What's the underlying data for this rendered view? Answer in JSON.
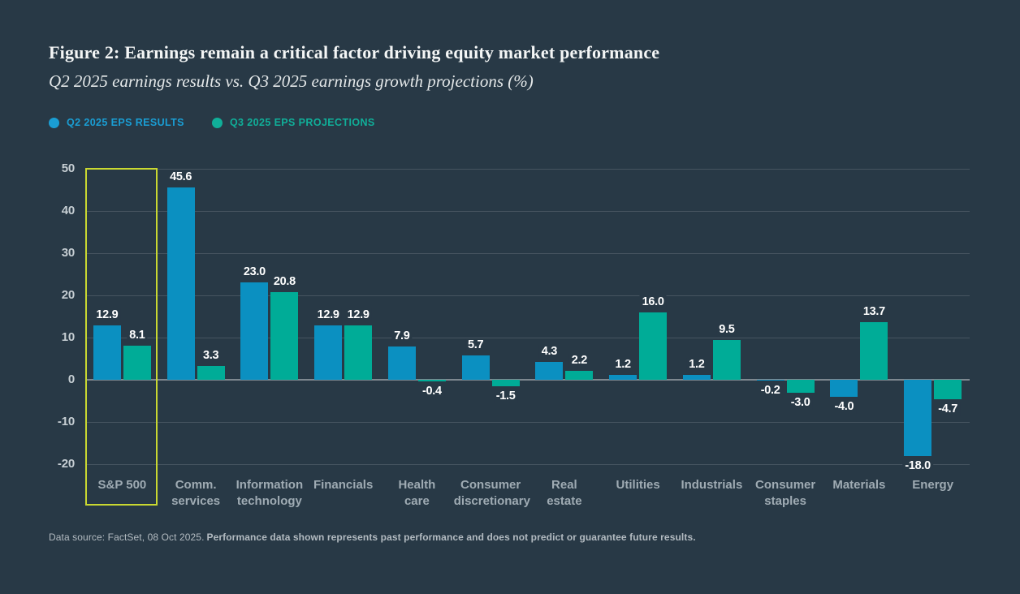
{
  "page": {
    "background": "#283946"
  },
  "header": {
    "title": "Figure 2: Earnings remain a critical factor driving equity market performance",
    "subtitle": "Q2 2025 earnings results vs. Q3 2025 earnings growth projections (%)"
  },
  "legend": [
    {
      "label": "Q2 2025 EPS RESULTS",
      "color": "#1a9ed4"
    },
    {
      "label": "Q3 2025 EPS PROJECTIONS",
      "color": "#10af99"
    }
  ],
  "chart_data": {
    "type": "bar",
    "title": "Q2 2025 earnings results vs. Q3 2025 earnings growth projections (%)",
    "categories": [
      "S&P 500",
      "Comm. services",
      "Information technology",
      "Financials",
      "Health care",
      "Consumer discretionary",
      "Real estate",
      "Utilities",
      "Industrials",
      "Consumer staples",
      "Materials",
      "Energy"
    ],
    "category_labels": [
      [
        "S&P 500"
      ],
      [
        "Comm.",
        "services"
      ],
      [
        "Information",
        "technology"
      ],
      [
        "Financials"
      ],
      [
        "Health",
        "care"
      ],
      [
        "Consumer",
        "discretionary"
      ],
      [
        "Real",
        "estate"
      ],
      [
        "Utilities"
      ],
      [
        "Industrials"
      ],
      [
        "Consumer",
        "staples"
      ],
      [
        "Materials"
      ],
      [
        "Energy"
      ]
    ],
    "series": [
      {
        "name": "Q2 2025 EPS RESULTS",
        "color": "#0b90c1",
        "values": [
          12.9,
          45.6,
          23.0,
          12.9,
          7.9,
          5.7,
          4.3,
          1.2,
          1.2,
          -0.2,
          -4.0,
          -18.0
        ]
      },
      {
        "name": "Q3 2025 EPS PROJECTIONS",
        "color": "#00ac97",
        "values": [
          8.1,
          3.3,
          20.8,
          12.9,
          -0.4,
          -1.5,
          2.2,
          16.0,
          9.5,
          -3.0,
          13.7,
          -4.7
        ]
      }
    ],
    "ylim": [
      -20,
      50
    ],
    "yticks": [
      50,
      40,
      30,
      20,
      10,
      0,
      -10,
      -20
    ],
    "grid": true,
    "legend_position": "top-left",
    "highlight_category": "S&P 500",
    "highlight_color": "#c9d831"
  },
  "footer": {
    "source": "Data source: FactSet, 08 Oct 2025.",
    "disclaimer": "Performance data shown represents past performance and does not predict or guarantee future results."
  }
}
